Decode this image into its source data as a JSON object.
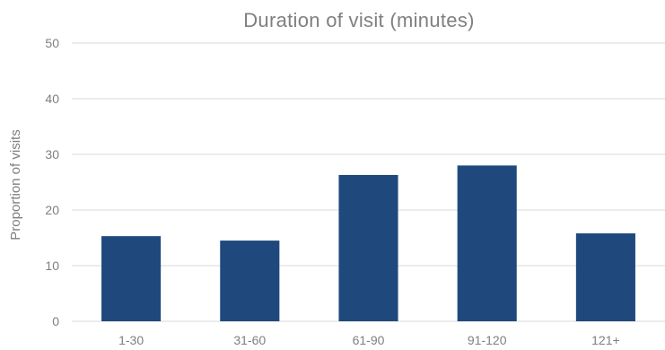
{
  "chart_data": {
    "type": "bar",
    "title": "Duration of visit (minutes)",
    "xlabel": "",
    "ylabel": "Proportion of visits",
    "categories": [
      "1-30",
      "31-60",
      "61-90",
      "91-120",
      "121+"
    ],
    "values": [
      15.3,
      14.5,
      26.3,
      28.0,
      15.8
    ],
    "ylim": [
      0,
      50
    ],
    "yticks": [
      0,
      10,
      20,
      30,
      40,
      50
    ],
    "grid": true,
    "legend": "none",
    "colors": {
      "bar": "#1f497d",
      "grid": "#d9d9d9",
      "text": "#7f7f7f"
    }
  }
}
